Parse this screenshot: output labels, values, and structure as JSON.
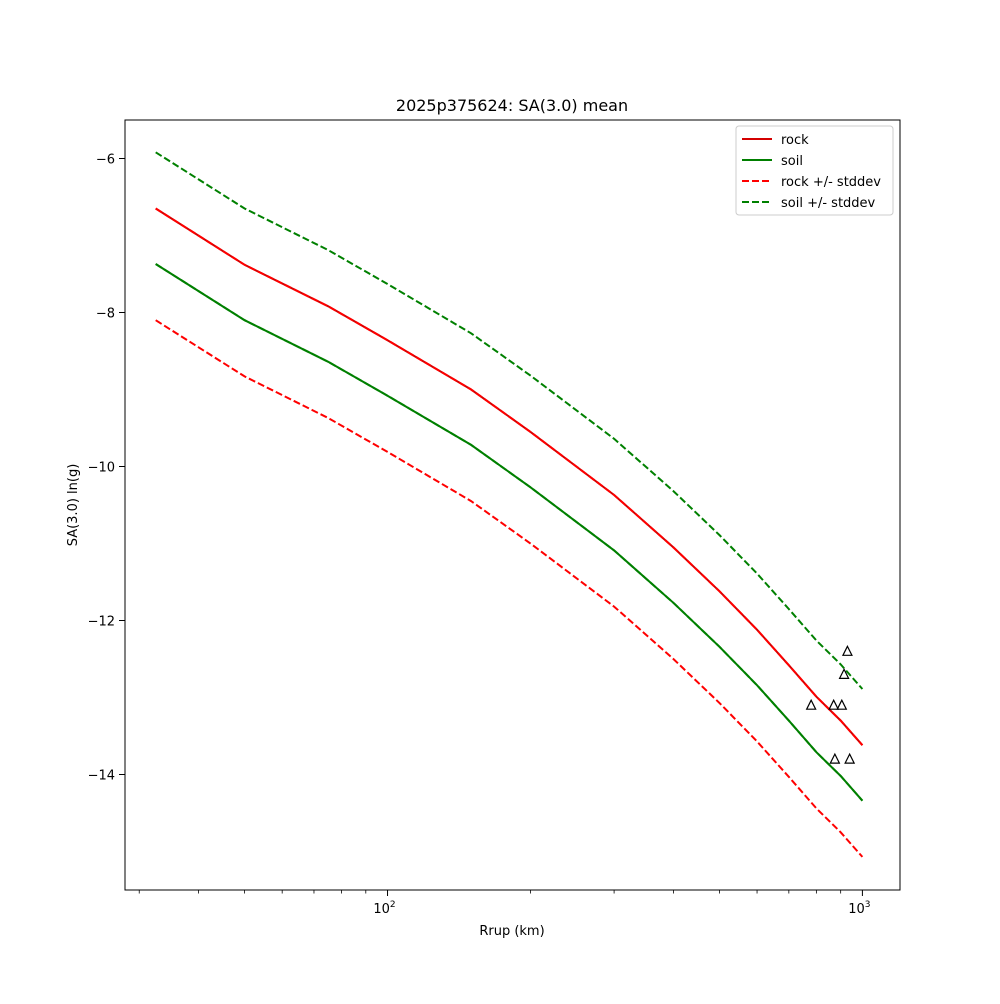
{
  "chart_data": {
    "type": "line",
    "title": "2025p375624: SA(3.0) mean",
    "xlabel": "Rrup (km)",
    "ylabel": "SA(3.0) ln(g)",
    "x_scale": "log",
    "xlim": [
      28,
      1200
    ],
    "ylim": [
      -15.5,
      -5.5
    ],
    "x_ticks": [
      {
        "value": 100,
        "base": "10",
        "exp": "2"
      },
      {
        "value": 1000,
        "base": "10",
        "exp": "3"
      }
    ],
    "y_ticks": [
      {
        "value": -14,
        "label": "−14"
      },
      {
        "value": -12,
        "label": "−12"
      },
      {
        "value": -10,
        "label": "−10"
      },
      {
        "value": -8,
        "label": "−8"
      },
      {
        "value": -6,
        "label": "−6"
      }
    ],
    "grid": false,
    "legend_position": "top-right",
    "legend": [
      {
        "label": "rock",
        "color": "#d40000",
        "dash": "solid"
      },
      {
        "label": "soil",
        "color": "#007f00",
        "dash": "solid"
      },
      {
        "label": "rock +/- stddev",
        "color": "#ff0000",
        "dash": "dashed"
      },
      {
        "label": "soil +/- stddev",
        "color": "#008000",
        "dash": "dashed"
      }
    ],
    "curves_x": [
      32.5,
      50,
      75,
      100,
      150,
      200,
      300,
      400,
      500,
      600,
      700,
      800,
      900,
      1000
    ],
    "series": [
      {
        "name": "rock",
        "color": "#d40000",
        "dash": "solid",
        "offset": 0.0
      },
      {
        "name": "soil",
        "color": "#007f00",
        "dash": "solid",
        "offset": -0.72
      },
      {
        "name": "rock +/- stddev",
        "color": "#ff0000",
        "dash": "dashed",
        "offset": -1.45
      },
      {
        "name": "rock +/- stddev",
        "color": "#ff0000",
        "dash": "dashed",
        "offset": 0.0
      },
      {
        "name": "soil +/- stddev",
        "color": "#008000",
        "dash": "dashed",
        "offset": 0.73
      },
      {
        "name": "soil +/- stddev",
        "color": "#008000",
        "dash": "dashed",
        "offset": -0.72
      }
    ],
    "base_curve": [
      -6.65,
      -7.38,
      -7.92,
      -8.36,
      -9.0,
      -9.55,
      -10.37,
      -11.05,
      -11.62,
      -12.12,
      -12.58,
      -12.99,
      -13.3,
      -13.62
    ],
    "observations": {
      "marker": "triangle",
      "points": [
        {
          "x": 780,
          "y": -13.1
        },
        {
          "x": 870,
          "y": -13.1
        },
        {
          "x": 905,
          "y": -13.1
        },
        {
          "x": 915,
          "y": -12.7
        },
        {
          "x": 930,
          "y": -12.4
        },
        {
          "x": 875,
          "y": -13.8
        },
        {
          "x": 940,
          "y": -13.8
        }
      ]
    }
  }
}
